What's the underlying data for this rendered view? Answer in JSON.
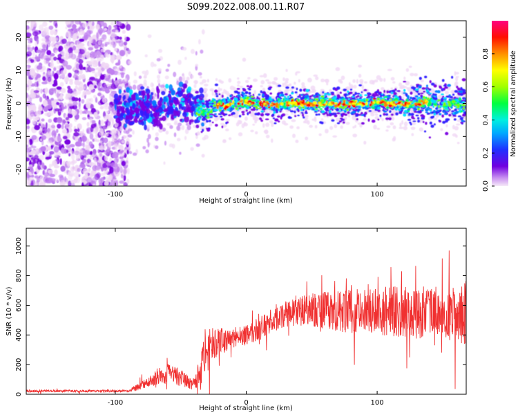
{
  "title": "S099.2022.008.00.11.R07",
  "colors": {
    "snr_line": "#f03030",
    "colormap": [
      "#f0d8f5",
      "#c080f0",
      "#7a00e0",
      "#3020ff",
      "#0080ff",
      "#00e0ff",
      "#00ff60",
      "#80ff00",
      "#ffff00",
      "#ff8000",
      "#ff0000",
      "#ff0080"
    ]
  },
  "chart_data": [
    {
      "type": "heatmap",
      "xlabel": "Height of straight line (km)",
      "ylabel": "Frequency (Hz)",
      "xlim": [
        -168,
        168
      ],
      "ylim": [
        -25,
        25
      ],
      "xticks": [
        -100,
        0,
        100
      ],
      "yticks": [
        -20,
        -10,
        0,
        10,
        20
      ],
      "colorbar": {
        "label": "Normalized spectral amplitude",
        "range": [
          0.0,
          1.0
        ],
        "ticks": [
          "0.0",
          "0.2",
          "0.4",
          "0.6",
          "0.8"
        ]
      },
      "ridge_x": [
        -168,
        -100,
        -90,
        -80,
        -70,
        -60,
        -50,
        -45,
        -40,
        -35,
        -30,
        -25,
        -20,
        -15,
        -10,
        -5,
        0,
        10,
        20,
        30,
        40,
        50,
        60,
        70,
        80,
        90,
        100,
        110,
        120,
        130,
        140,
        150,
        160,
        168
      ],
      "ridge_y": [
        0,
        0,
        -2,
        -1,
        -2,
        0,
        1,
        0,
        -1,
        -2,
        -3,
        -1,
        -0.5,
        -1,
        0,
        0.5,
        0.5,
        0,
        -0.5,
        0,
        0,
        0,
        0,
        -0.5,
        0,
        0,
        0.5,
        0,
        -0.5,
        0,
        0.5,
        -0.5,
        0,
        -1
      ]
    },
    {
      "type": "line",
      "xlabel": "Height of straight line (km)",
      "ylabel": "SNR (10 * v/v)",
      "xlim": [
        -168,
        168
      ],
      "ylim": [
        0,
        1120
      ],
      "xticks": [
        -100,
        0,
        100
      ],
      "yticks": [
        0,
        200,
        400,
        600,
        800,
        1000
      ],
      "envelope_x": [
        -168,
        -90,
        -80,
        -70,
        -60,
        -50,
        -40,
        -35,
        -30,
        -20,
        -10,
        0,
        10,
        20,
        30,
        40,
        50,
        60,
        70,
        80,
        90,
        100,
        110,
        120,
        130,
        140,
        150,
        160,
        168
      ],
      "envelope_y": [
        22,
        22,
        60,
        110,
        140,
        110,
        70,
        180,
        300,
        360,
        370,
        400,
        440,
        500,
        540,
        560,
        570,
        570,
        560,
        560,
        560,
        560,
        560,
        555,
        555,
        550,
        540,
        520,
        560
      ],
      "noise_amplitude": [
        8,
        8,
        30,
        50,
        70,
        60,
        40,
        120,
        150,
        90,
        80,
        70,
        80,
        80,
        90,
        100,
        110,
        130,
        140,
        150,
        150,
        160,
        170,
        170,
        180,
        180,
        180,
        200,
        220
      ]
    }
  ]
}
